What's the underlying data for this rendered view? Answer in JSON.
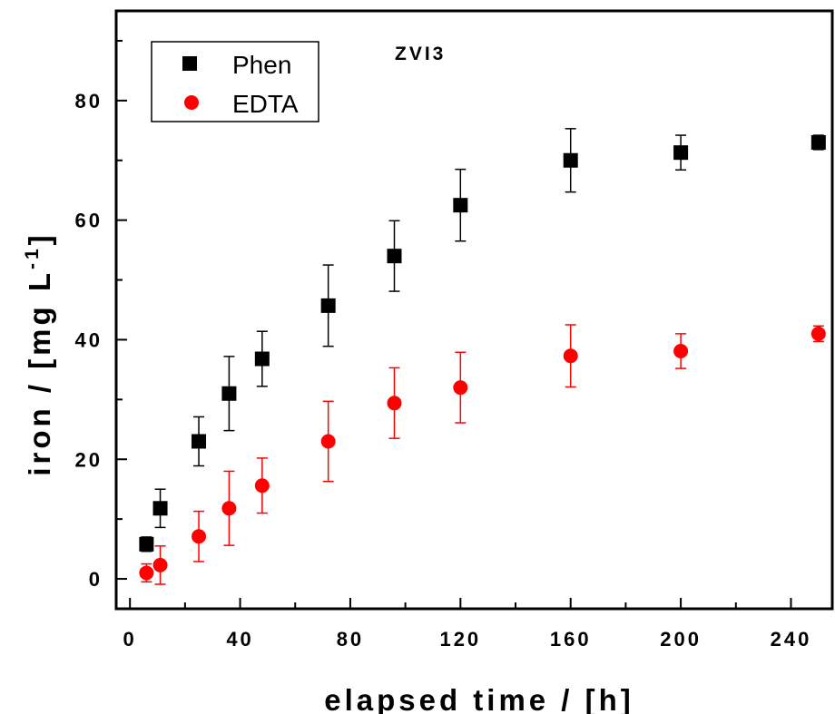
{
  "chart_data": {
    "type": "scatter",
    "title": "",
    "annotation": "ZVI3",
    "xlabel": "elapsed time / [h]",
    "ylabel": {
      "main": "iron / [mg L",
      "superscript": "-1",
      "close": "]"
    },
    "xlim": [
      -5,
      255
    ],
    "ylim": [
      -5,
      95
    ],
    "x_ticks": [
      0,
      40,
      80,
      120,
      160,
      200,
      240
    ],
    "y_ticks": [
      0,
      20,
      40,
      60,
      80
    ],
    "x_tick_labels": [
      "0",
      "40",
      "80",
      "120",
      "160",
      "200",
      "240"
    ],
    "y_tick_labels": [
      "0",
      "20",
      "40",
      "60",
      "80"
    ],
    "legend_position": "top-left",
    "grid": false,
    "series": [
      {
        "name": "Phen",
        "marker": "square",
        "color": "#000000",
        "x": [
          6,
          11,
          25,
          36,
          48,
          72,
          96,
          120,
          160,
          200,
          250
        ],
        "y": [
          5.8,
          11.8,
          23.0,
          31.0,
          36.8,
          45.7,
          54.0,
          62.5,
          70.0,
          71.3,
          73.0
        ],
        "error": [
          1.2,
          3.2,
          4.1,
          6.2,
          4.6,
          6.8,
          5.9,
          6.0,
          5.3,
          2.9,
          1.2
        ]
      },
      {
        "name": "EDTA",
        "marker": "circle",
        "color": "#ff0000",
        "x": [
          6,
          11,
          25,
          36,
          48,
          72,
          96,
          120,
          160,
          200,
          250
        ],
        "y": [
          1.0,
          2.3,
          7.1,
          11.8,
          15.6,
          23.0,
          29.4,
          32.0,
          37.3,
          38.1,
          41.0
        ],
        "error": [
          1.5,
          3.2,
          4.2,
          6.2,
          4.6,
          6.7,
          5.9,
          5.9,
          5.2,
          2.9,
          1.3
        ]
      }
    ]
  }
}
